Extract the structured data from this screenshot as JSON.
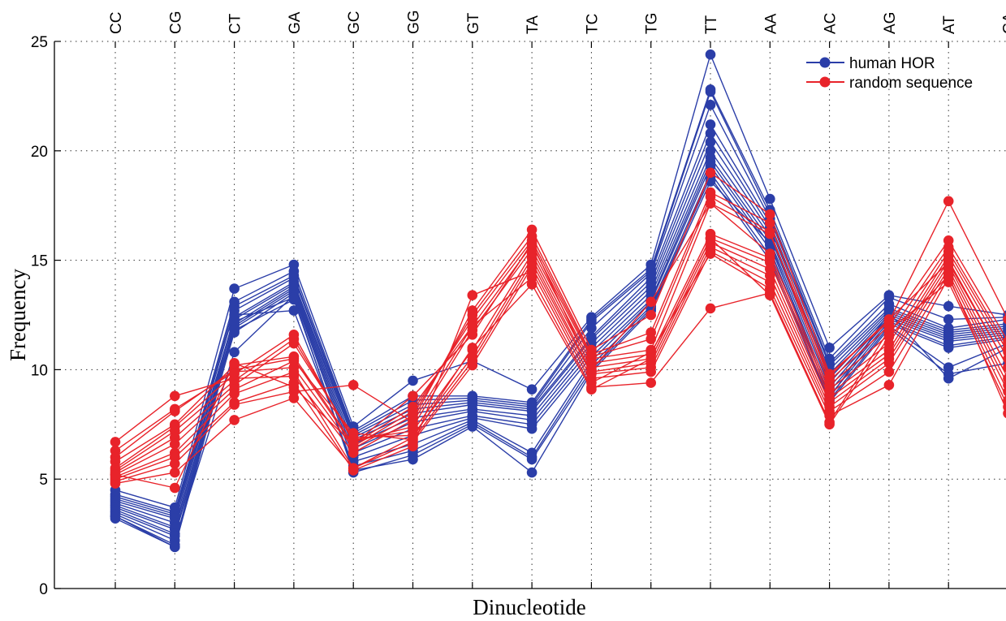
{
  "chart_data": {
    "type": "line",
    "xlabel": "Dinucleotide",
    "ylabel": "Frequency",
    "categories": [
      "CC",
      "CG",
      "CT",
      "GA",
      "GC",
      "GG",
      "GT",
      "TA",
      "TC",
      "TG",
      "TT",
      "AA",
      "AC",
      "AG",
      "AT",
      "CA"
    ],
    "ylim": [
      0,
      25
    ],
    "yticks": [
      0,
      5,
      10,
      15,
      20,
      25
    ],
    "grid": true,
    "legend_position": "top-right",
    "series_colors": {
      "human HOR": "#2b3ea8",
      "random sequence": "#e8232a"
    },
    "series": [
      {
        "name": "human HOR",
        "lines": [
          [
            4.5,
            3.7,
            13.7,
            14.8,
            7.4,
            9.5,
            10.4,
            9.1,
            12.4,
            14.8,
            24.4,
            17.8,
            11.0,
            13.4,
            12.9,
            12.5
          ],
          [
            4.3,
            3.5,
            13.1,
            14.5,
            7.2,
            8.8,
            8.8,
            8.5,
            12.3,
            14.6,
            22.8,
            17.3,
            10.5,
            13.3,
            12.3,
            12.4
          ],
          [
            4.2,
            3.4,
            12.9,
            14.3,
            7.1,
            8.6,
            8.7,
            8.4,
            12.2,
            14.5,
            22.7,
            17.1,
            10.3,
            13.0,
            11.9,
            12.3
          ],
          [
            4.1,
            3.3,
            12.7,
            14.2,
            7.0,
            8.4,
            8.6,
            8.3,
            11.9,
            14.4,
            22.1,
            16.9,
            10.2,
            12.8,
            11.8,
            12.1
          ],
          [
            4.0,
            3.2,
            12.4,
            14.0,
            6.9,
            8.2,
            8.5,
            8.2,
            11.5,
            14.2,
            21.2,
            16.7,
            10.0,
            12.7,
            11.7,
            12.0
          ],
          [
            3.9,
            3.0,
            12.3,
            13.9,
            6.8,
            8.0,
            8.4,
            8.1,
            11.4,
            14.0,
            20.8,
            16.5,
            9.8,
            12.6,
            11.6,
            11.9
          ],
          [
            3.8,
            2.8,
            12.1,
            13.8,
            6.6,
            7.8,
            8.2,
            7.9,
            11.2,
            13.8,
            20.4,
            16.3,
            9.6,
            12.5,
            11.5,
            11.8
          ],
          [
            3.7,
            2.7,
            12.0,
            13.7,
            6.4,
            7.6,
            8.1,
            7.7,
            11.0,
            13.6,
            20.0,
            16.1,
            9.4,
            12.4,
            11.4,
            11.7
          ],
          [
            3.6,
            2.5,
            11.9,
            13.6,
            6.2,
            7.3,
            7.9,
            7.5,
            10.8,
            13.4,
            19.7,
            15.9,
            9.2,
            12.3,
            11.3,
            11.6
          ],
          [
            3.5,
            2.4,
            11.7,
            13.5,
            6.0,
            7.0,
            7.8,
            7.3,
            10.6,
            13.2,
            19.5,
            15.7,
            9.0,
            12.2,
            11.1,
            11.5
          ],
          [
            3.4,
            2.2,
            10.8,
            13.4,
            5.8,
            6.6,
            7.7,
            6.2,
            10.4,
            13.1,
            19.3,
            15.5,
            8.8,
            12.1,
            11.0,
            11.4
          ],
          [
            3.3,
            2.0,
            12.5,
            12.7,
            5.6,
            6.3,
            7.6,
            6.0,
            10.2,
            12.9,
            19.0,
            15.2,
            8.6,
            12.0,
            10.1,
            11.2
          ],
          [
            3.2,
            1.9,
            12.2,
            13.3,
            5.3,
            6.1,
            7.5,
            5.9,
            10.0,
            12.8,
            18.8,
            15.0,
            8.5,
            11.9,
            9.8,
            10.3
          ],
          [
            3.3,
            1.9,
            11.8,
            13.2,
            5.4,
            5.9,
            7.4,
            5.3,
            9.9,
            12.7,
            18.6,
            15.8,
            8.7,
            12.6,
            9.6,
            11.0
          ]
        ]
      },
      {
        "name": "random sequence",
        "lines": [
          [
            6.7,
            8.8,
            9.6,
            9.7,
            6.2,
            7.7,
            12.7,
            16.4,
            10.9,
            12.5,
            19.0,
            17.1,
            9.8,
            12.2,
            17.7,
            12.3
          ],
          [
            6.3,
            8.2,
            9.9,
            10.1,
            6.4,
            7.9,
            12.5,
            16.1,
            10.7,
            11.7,
            18.1,
            16.7,
            9.5,
            12.0,
            15.9,
            11.3
          ],
          [
            6.0,
            8.1,
            10.0,
            10.5,
            6.5,
            8.1,
            12.3,
            15.9,
            10.6,
            11.4,
            17.9,
            16.3,
            9.3,
            11.6,
            15.6,
            11.0
          ],
          [
            5.8,
            7.5,
            10.2,
            10.6,
            6.6,
            8.3,
            12.0,
            15.7,
            10.5,
            10.9,
            17.6,
            15.3,
            9.1,
            11.2,
            15.4,
            10.8
          ],
          [
            5.5,
            7.4,
            9.8,
            11.6,
            6.7,
            7.4,
            11.8,
            15.5,
            10.3,
            10.7,
            16.2,
            15.1,
            8.9,
            10.9,
            15.2,
            10.5
          ],
          [
            5.4,
            7.2,
            9.5,
            11.4,
            6.8,
            7.2,
            10.9,
            15.3,
            10.1,
            10.5,
            16.0,
            14.9,
            8.7,
            10.7,
            15.0,
            10.1
          ],
          [
            5.3,
            6.9,
            9.3,
            11.2,
            6.9,
            7.0,
            10.6,
            15.1,
            9.9,
            10.3,
            15.8,
            14.6,
            8.5,
            10.5,
            14.8,
            9.6
          ],
          [
            5.2,
            6.6,
            9.1,
            10.4,
            7.1,
            6.8,
            10.4,
            14.9,
            9.8,
            10.1,
            15.6,
            14.3,
            8.3,
            10.3,
            14.6,
            9.3
          ],
          [
            5.1,
            6.2,
            8.9,
            9.9,
            5.5,
            6.7,
            10.2,
            14.7,
            9.6,
            9.9,
            15.4,
            14.0,
            8.1,
            9.9,
            14.4,
            9.0
          ],
          [
            5.0,
            6.0,
            8.5,
            9.4,
            5.4,
            6.5,
            13.4,
            14.5,
            9.4,
            10.8,
            15.3,
            13.7,
            7.9,
            9.3,
            14.2,
            8.6
          ],
          [
            4.9,
            5.7,
            8.4,
            9.0,
            9.3,
            7.6,
            12.0,
            14.2,
            9.2,
            9.4,
            12.8,
            13.5,
            7.6,
            11.8,
            14.0,
            8.3
          ],
          [
            4.8,
            5.3,
            7.7,
            8.7,
            5.5,
            6.9,
            11.0,
            13.9,
            9.1,
            10.5,
            16.0,
            13.4,
            7.5,
            11.5,
            14.3,
            8.0
          ],
          [
            5.2,
            4.6,
            10.3,
            9.2,
            6.6,
            8.8,
            11.6,
            15.8,
            10.0,
            13.1,
            17.6,
            16.2,
            9.7,
            12.3,
            14.9,
            10.1
          ]
        ]
      }
    ]
  }
}
